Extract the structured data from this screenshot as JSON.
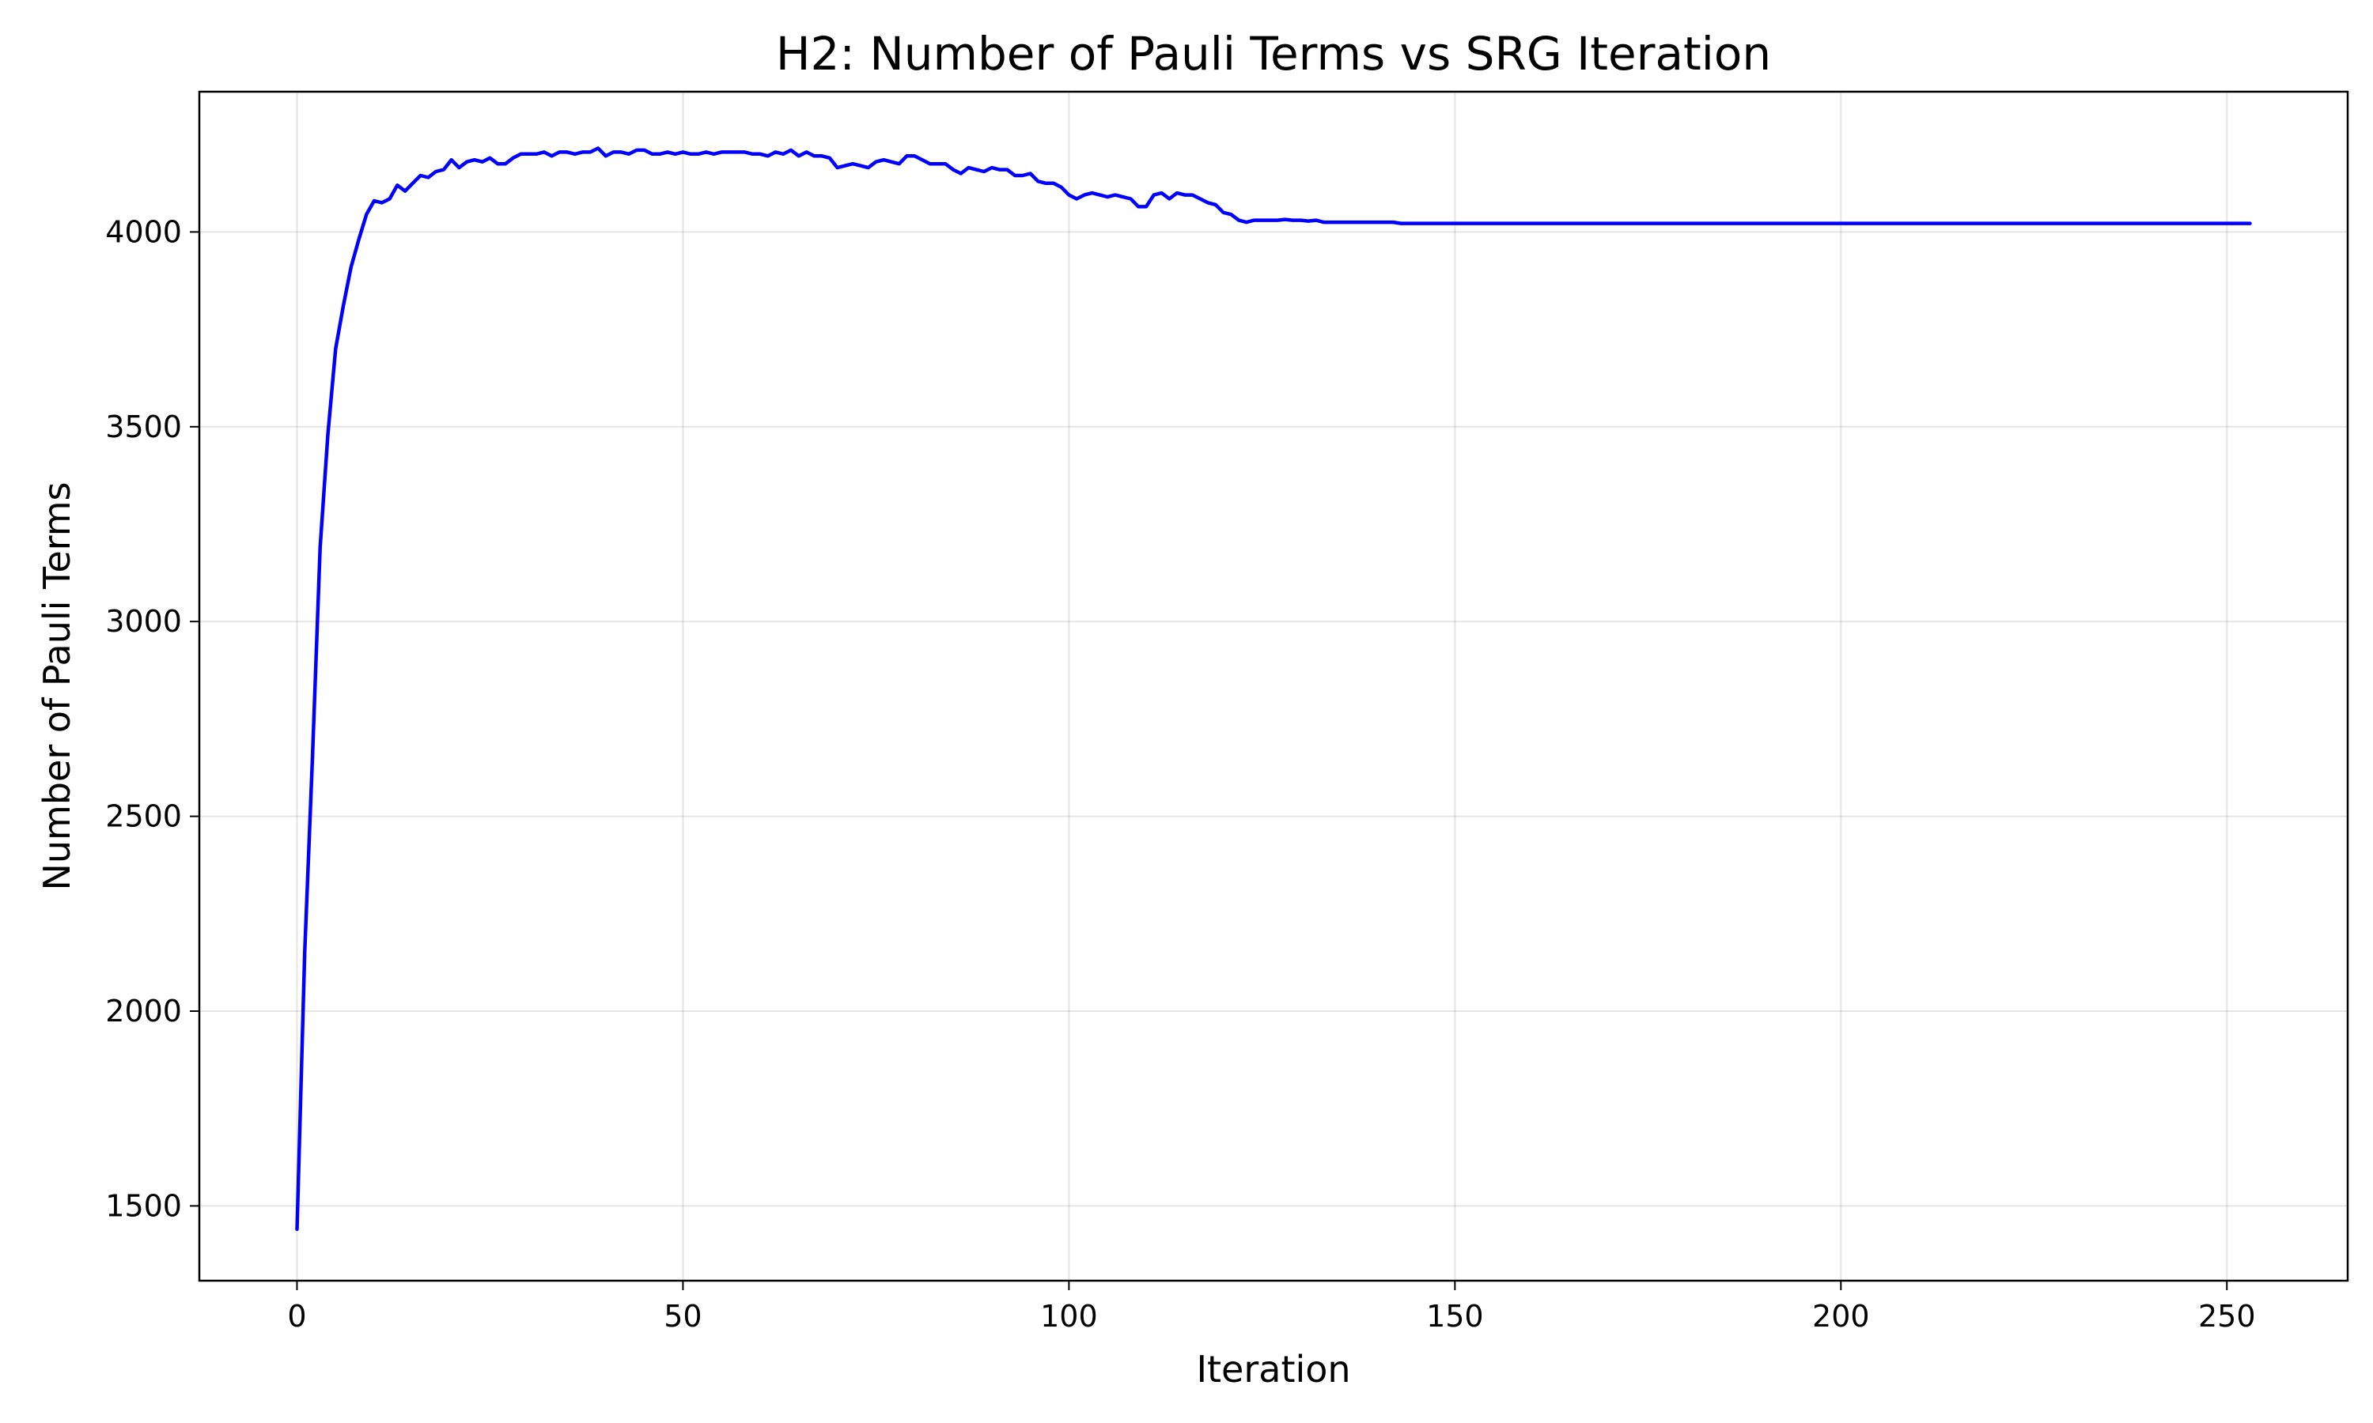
{
  "chart_data": {
    "type": "line",
    "title": "H2: Number of Pauli Terms vs SRG Iteration",
    "xlabel": "Iteration",
    "ylabel": "Number of Pauli Terms",
    "xlim": [
      -12.65,
      265.65
    ],
    "ylim": [
      1308,
      4360
    ],
    "xticks": [
      0,
      50,
      100,
      150,
      200,
      250
    ],
    "yticks": [
      1500,
      2000,
      2500,
      3000,
      3500,
      4000
    ],
    "grid": true,
    "legend": "none",
    "series": [
      {
        "color": "#0000ff",
        "x": [
          0,
          1,
          2,
          3,
          4,
          5,
          6,
          7,
          8,
          9,
          10,
          11,
          12,
          13,
          14,
          15,
          16,
          17,
          18,
          19,
          20,
          21,
          22,
          23,
          24,
          25,
          26,
          27,
          28,
          29,
          30,
          31,
          32,
          33,
          34,
          35,
          36,
          37,
          38,
          39,
          40,
          41,
          42,
          43,
          44,
          45,
          46,
          47,
          48,
          49,
          50,
          51,
          52,
          53,
          54,
          55,
          56,
          57,
          58,
          59,
          60,
          61,
          62,
          63,
          64,
          65,
          66,
          67,
          68,
          69,
          70,
          71,
          72,
          73,
          74,
          75,
          76,
          77,
          78,
          79,
          80,
          81,
          82,
          83,
          84,
          85,
          86,
          87,
          88,
          89,
          90,
          91,
          92,
          93,
          94,
          95,
          96,
          97,
          98,
          99,
          100,
          101,
          102,
          103,
          104,
          105,
          106,
          107,
          108,
          109,
          110,
          111,
          112,
          113,
          114,
          115,
          116,
          117,
          118,
          119,
          120,
          121,
          122,
          123,
          124,
          125,
          126,
          127,
          128,
          129,
          130,
          131,
          132,
          133,
          134,
          135,
          136,
          137,
          138,
          139,
          140,
          141,
          142,
          143,
          144,
          145,
          150,
          160,
          170,
          180,
          190,
          200,
          210,
          220,
          230,
          240,
          250,
          253
        ],
        "y": [
          1440,
          2150,
          2650,
          3190,
          3480,
          3700,
          3810,
          3910,
          3980,
          4045,
          4080,
          4075,
          4085,
          4120,
          4105,
          4125,
          4145,
          4140,
          4155,
          4160,
          4185,
          4165,
          4180,
          4185,
          4180,
          4190,
          4175,
          4175,
          4190,
          4200,
          4200,
          4200,
          4205,
          4195,
          4205,
          4205,
          4200,
          4205,
          4205,
          4215,
          4195,
          4205,
          4205,
          4200,
          4210,
          4210,
          4200,
          4200,
          4205,
          4200,
          4205,
          4200,
          4200,
          4205,
          4200,
          4205,
          4205,
          4205,
          4205,
          4200,
          4200,
          4195,
          4205,
          4200,
          4210,
          4195,
          4205,
          4195,
          4195,
          4190,
          4165,
          4170,
          4175,
          4170,
          4165,
          4180,
          4185,
          4180,
          4175,
          4195,
          4195,
          4185,
          4175,
          4175,
          4175,
          4160,
          4150,
          4165,
          4160,
          4155,
          4165,
          4160,
          4160,
          4145,
          4145,
          4150,
          4130,
          4125,
          4125,
          4115,
          4095,
          4085,
          4095,
          4100,
          4095,
          4090,
          4095,
          4090,
          4085,
          4065,
          4065,
          4095,
          4100,
          4085,
          4100,
          4095,
          4095,
          4085,
          4075,
          4070,
          4050,
          4045,
          4030,
          4025,
          4030,
          4030,
          4030,
          4030,
          4032,
          4030,
          4030,
          4028,
          4030,
          4025,
          4025,
          4025,
          4025,
          4025,
          4025,
          4025,
          4025,
          4025,
          4025,
          4022,
          4022,
          4022,
          4022,
          4022,
          4022,
          4022,
          4022,
          4022,
          4022,
          4022,
          4022,
          4022,
          4022,
          4022
        ]
      }
    ]
  }
}
